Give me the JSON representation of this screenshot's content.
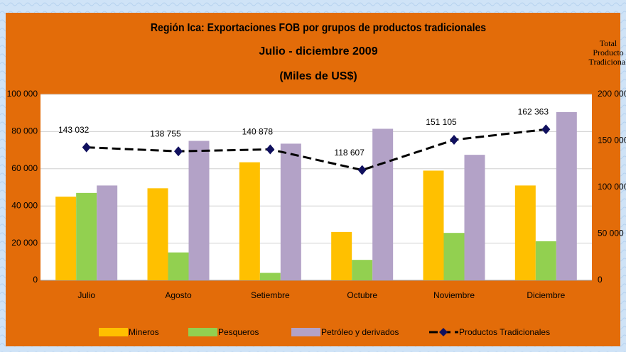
{
  "chart_data": {
    "type": "bar",
    "title": "Región Ica: Exportaciones FOB por grupos de productos tradicionales",
    "subtitle": "Julio - diciembre 2009",
    "unit": "(Miles de US$)",
    "y2label": [
      "Total",
      "Producto",
      "Tradicional"
    ],
    "categories": [
      "Julio",
      "Agosto",
      "Setiembre",
      "Octubre",
      "Noviembre",
      "Diciembre"
    ],
    "series": [
      {
        "name": "Mineros",
        "color": "#FFC000",
        "values": [
          45000,
          49500,
          63500,
          26000,
          59000,
          51000
        ]
      },
      {
        "name": "Pesqueros",
        "color": "#92D050",
        "values": [
          47000,
          15000,
          4000,
          11000,
          25500,
          21000
        ]
      },
      {
        "name": "Petróleo y derivados",
        "color": "#B3A2C7",
        "values": [
          51000,
          75000,
          73500,
          81500,
          67500,
          90500
        ]
      },
      {
        "name": "Productos Tradicionales",
        "color": "#000000",
        "marker_color": "#10105E",
        "axis": "y2",
        "type": "line",
        "values": [
          143032,
          138755,
          140878,
          118607,
          151105,
          162363
        ],
        "value_labels": [
          "143 032",
          "138 755",
          "140 878",
          "118 607",
          "151 105",
          "162 363"
        ]
      }
    ],
    "ylim": [
      0,
      100000
    ],
    "yticks": [
      {
        "value": 0,
        "label": "0"
      },
      {
        "value": 20000,
        "label": "20 000"
      },
      {
        "value": 40000,
        "label": "40 000"
      },
      {
        "value": 60000,
        "label": "60 000"
      },
      {
        "value": 80000,
        "label": "80 000"
      },
      {
        "value": 100000,
        "label": "100 000"
      }
    ],
    "y2lim": [
      0,
      200000
    ],
    "y2ticks": [
      {
        "value": 0,
        "label": "0"
      },
      {
        "value": 50000,
        "label": "50 000"
      },
      {
        "value": 100000,
        "label": "100 000"
      },
      {
        "value": 150000,
        "label": "150 000"
      },
      {
        "value": 200000,
        "label": "200 000"
      }
    ],
    "grid": true,
    "legend": "bottom"
  }
}
